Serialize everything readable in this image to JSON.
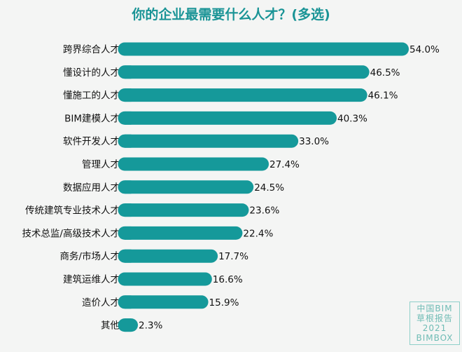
{
  "chart_data": {
    "type": "bar",
    "orientation": "horizontal",
    "title": "你的企业最需要什么人才？(多选)",
    "categories": [
      "跨界综合人才",
      "懂设计的人才",
      "懂施工的人才",
      "BIM建模人才",
      "软件开发人才",
      "管理人才",
      "数据应用人才",
      "传统建筑专业技术人才",
      "技术总监/高级技术人才",
      "商务/市场人才",
      "建筑运维人才",
      "造价人才",
      "其他"
    ],
    "values": [
      54.0,
      46.5,
      46.1,
      40.3,
      33.0,
      27.4,
      24.5,
      23.6,
      22.4,
      17.7,
      16.6,
      15.9,
      2.3
    ],
    "value_labels": [
      "54.0%",
      "46.5%",
      "46.1%",
      "40.3%",
      "33.0%",
      "27.4%",
      "24.5%",
      "23.6%",
      "22.4%",
      "17.7%",
      "16.6%",
      "15.9%",
      "2.3%"
    ],
    "xlim": [
      0,
      54.0
    ],
    "grid": false,
    "bar_color": "#15999a"
  },
  "watermark": {
    "line1": "中国BIM",
    "line2": "草根报告",
    "line3": "2021",
    "line4": "BIMBOX"
  }
}
